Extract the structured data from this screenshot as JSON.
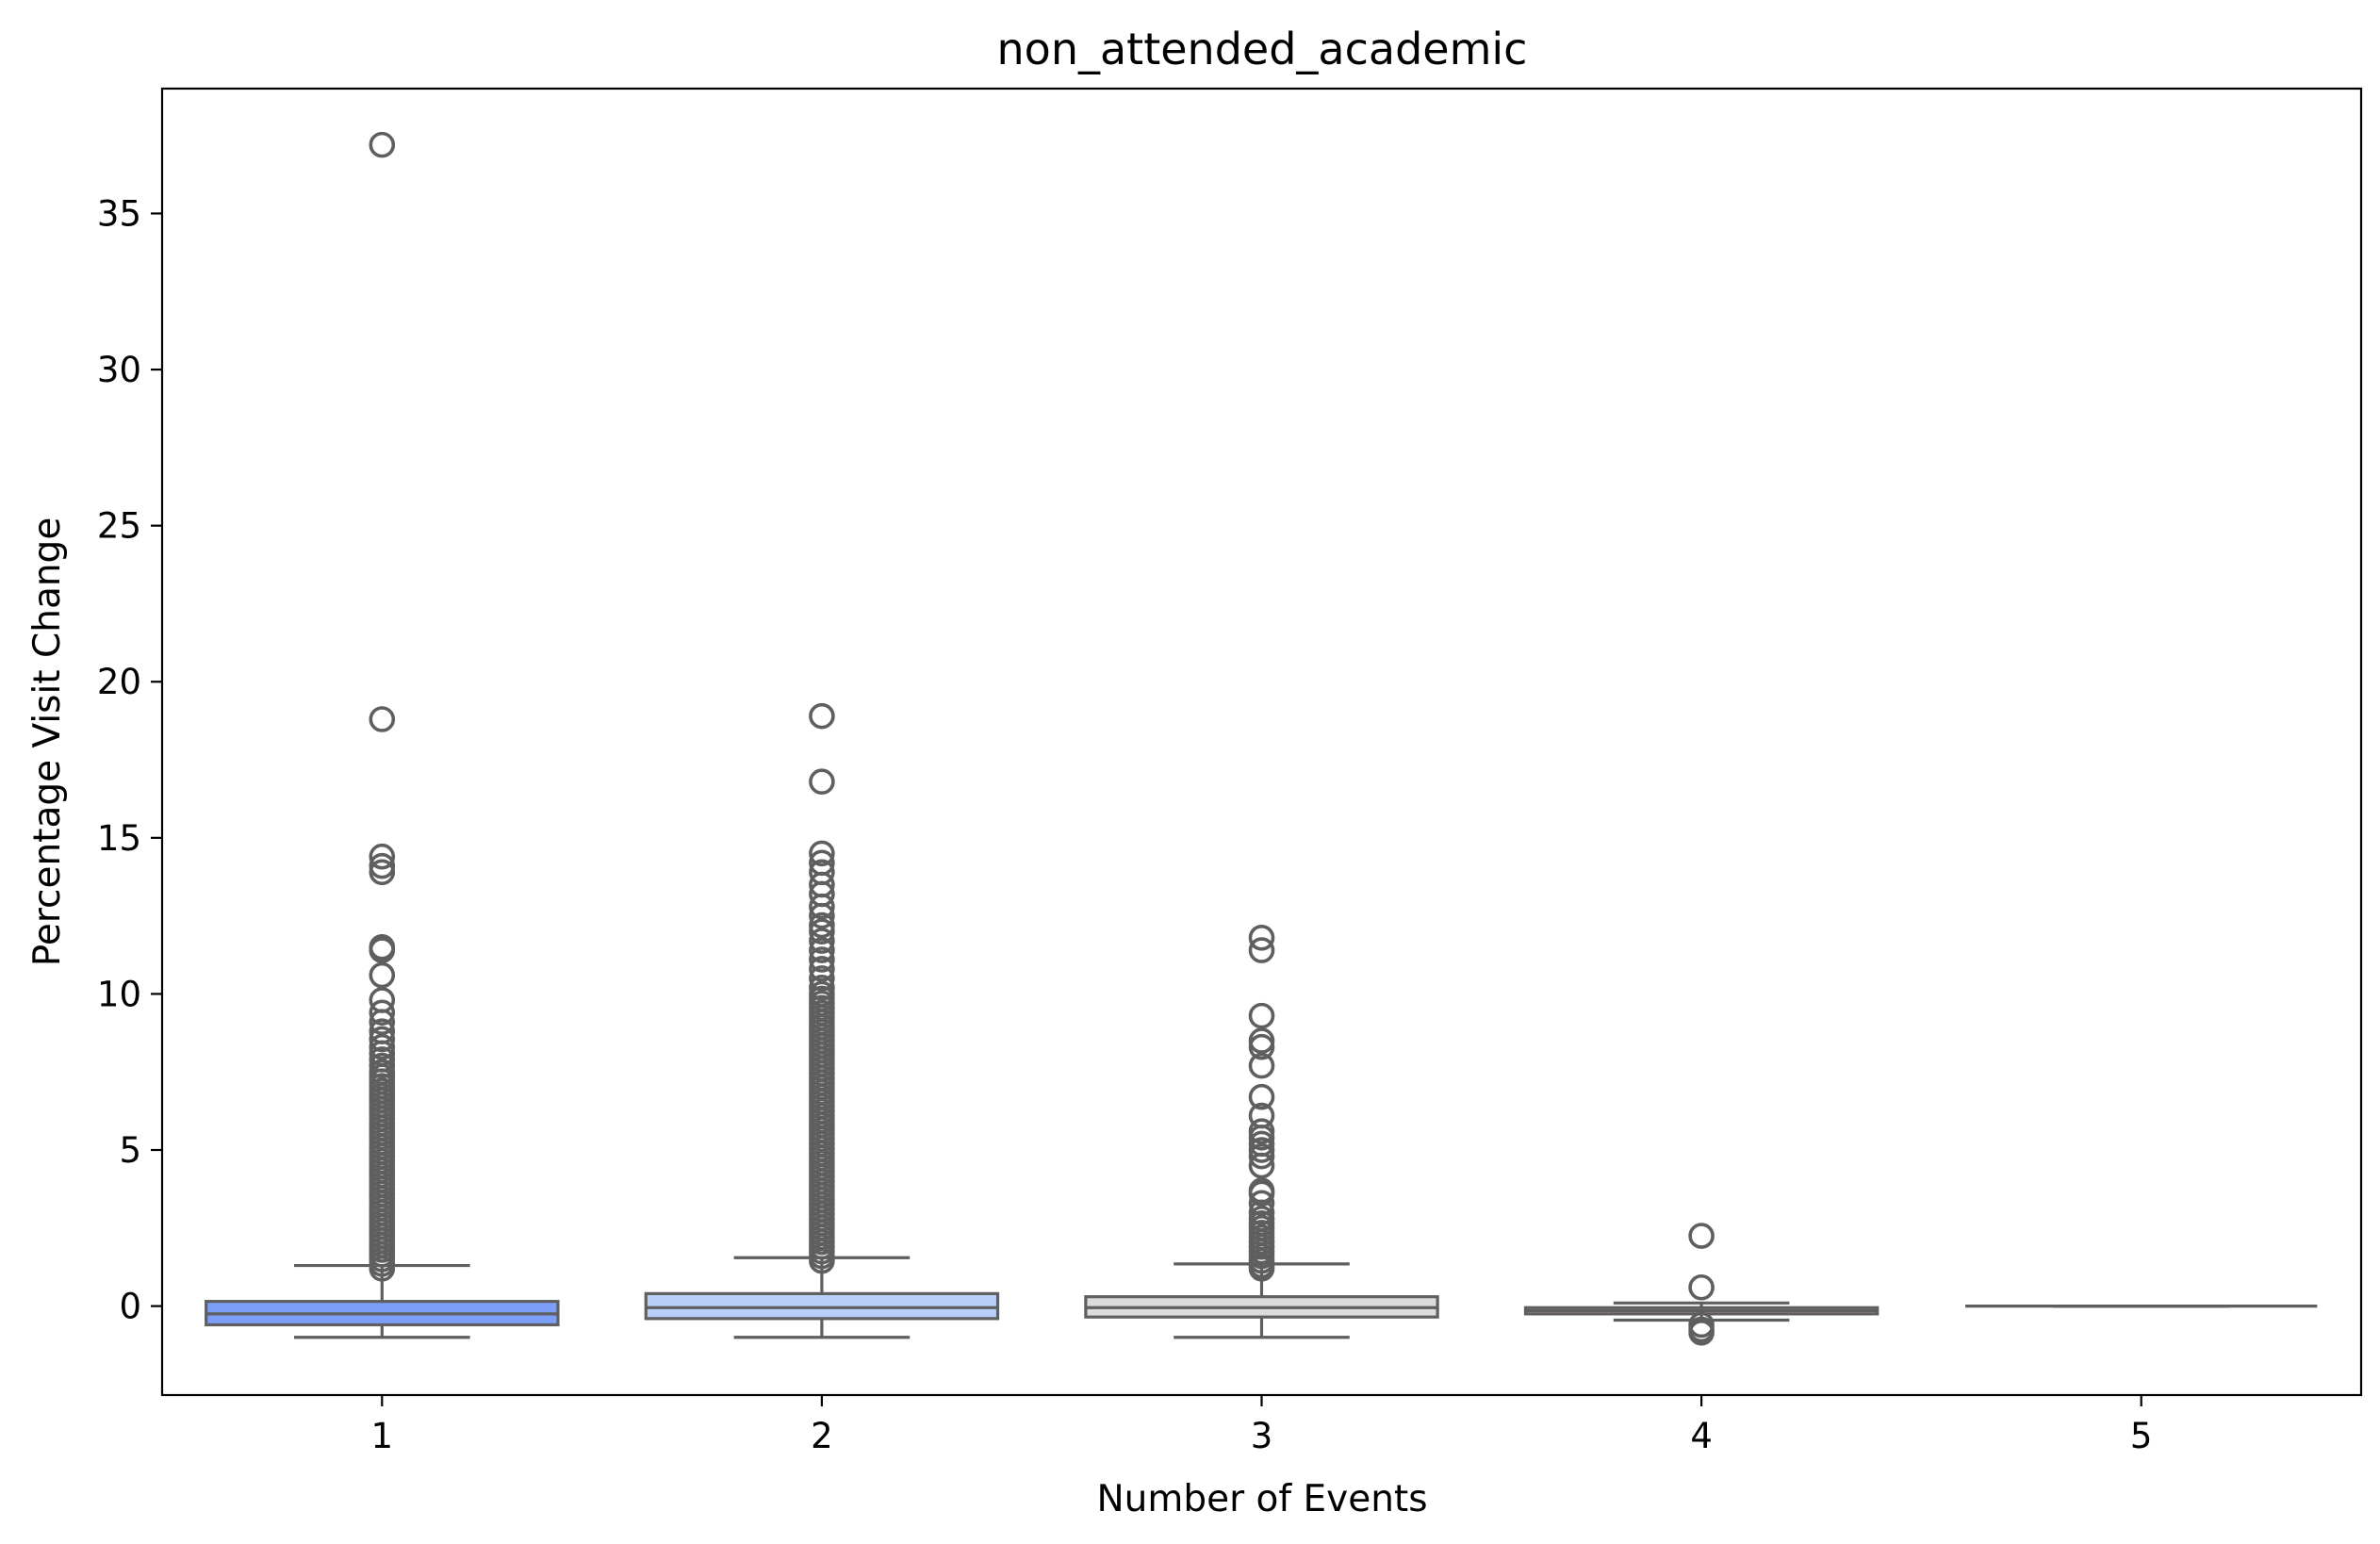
{
  "chart_data": {
    "type": "box",
    "title": "non_attended_academic",
    "xlabel": "Number of Events",
    "ylabel": "Percentage Visit Change",
    "categories": [
      "1",
      "2",
      "3",
      "4",
      "5"
    ],
    "yticks": [
      0,
      5,
      10,
      15,
      20,
      25,
      30,
      35
    ],
    "ylim": [
      -2.85,
      39.0
    ],
    "grid": false,
    "legend": "none",
    "line_color": "#5f5f5f",
    "box_colors": [
      "#7b9ff9",
      "#b7cff9",
      "#dddcdc",
      "#f2b69a",
      "#e7735c"
    ],
    "groups": [
      {
        "category": "1",
        "whisker_low": -1.0,
        "q1": -0.6,
        "median": -0.25,
        "q3": 0.15,
        "whisker_high": 1.3,
        "outliers": [
          1.2,
          1.35,
          1.5,
          1.65,
          1.8,
          1.95,
          2.1,
          2.25,
          2.4,
          2.55,
          2.7,
          2.85,
          3.0,
          3.15,
          3.3,
          3.45,
          3.6,
          3.75,
          3.9,
          4.05,
          4.2,
          4.35,
          4.5,
          4.65,
          4.8,
          4.95,
          5.1,
          5.25,
          5.4,
          5.55,
          5.7,
          5.85,
          6.0,
          6.15,
          6.3,
          6.45,
          6.6,
          6.75,
          6.9,
          7.05,
          7.2,
          7.35,
          7.5,
          7.7,
          7.9,
          8.1,
          8.3,
          8.55,
          8.8,
          9.1,
          9.4,
          9.8,
          10.6,
          11.4,
          11.5,
          13.9,
          14.1,
          14.4,
          18.8,
          37.2
        ]
      },
      {
        "category": "2",
        "whisker_low": -1.0,
        "q1": -0.4,
        "median": -0.05,
        "q3": 0.4,
        "whisker_high": 1.55,
        "outliers": [
          1.45,
          1.6,
          1.75,
          1.9,
          2.05,
          2.2,
          2.35,
          2.5,
          2.65,
          2.8,
          2.95,
          3.1,
          3.25,
          3.4,
          3.55,
          3.7,
          3.85,
          4.0,
          4.15,
          4.3,
          4.45,
          4.6,
          4.75,
          4.9,
          5.05,
          5.2,
          5.35,
          5.5,
          5.65,
          5.8,
          5.95,
          6.1,
          6.25,
          6.4,
          6.55,
          6.7,
          6.85,
          7.0,
          7.15,
          7.3,
          7.45,
          7.6,
          7.75,
          7.9,
          8.05,
          8.2,
          8.35,
          8.5,
          8.65,
          8.8,
          8.95,
          9.1,
          9.25,
          9.4,
          9.55,
          9.7,
          9.85,
          10.0,
          10.2,
          10.5,
          10.8,
          11.1,
          11.4,
          11.7,
          12.0,
          12.2,
          12.5,
          12.8,
          13.2,
          13.5,
          13.9,
          14.2,
          14.5,
          16.8,
          18.9
        ]
      },
      {
        "category": "3",
        "whisker_low": -1.0,
        "q1": -0.35,
        "median": -0.05,
        "q3": 0.3,
        "whisker_high": 1.35,
        "outliers": [
          1.2,
          1.3,
          1.45,
          1.6,
          1.75,
          1.9,
          2.05,
          2.2,
          2.35,
          2.5,
          2.65,
          2.8,
          3.0,
          3.3,
          3.6,
          3.7,
          4.5,
          4.8,
          5.0,
          5.2,
          5.4,
          5.6,
          6.1,
          6.7,
          7.7,
          8.3,
          8.5,
          9.3,
          11.4,
          11.8
        ]
      },
      {
        "category": "4",
        "whisker_low": -0.45,
        "q1": -0.25,
        "median": -0.15,
        "q3": -0.05,
        "whisker_high": 0.1,
        "outliers": [
          -0.85,
          -0.75,
          -0.6,
          0.6,
          2.25
        ]
      },
      {
        "category": "5",
        "whisker_low": 0.0,
        "q1": 0.0,
        "median": 0.0,
        "q3": 0.0,
        "whisker_high": 0.0,
        "outliers": []
      }
    ]
  }
}
